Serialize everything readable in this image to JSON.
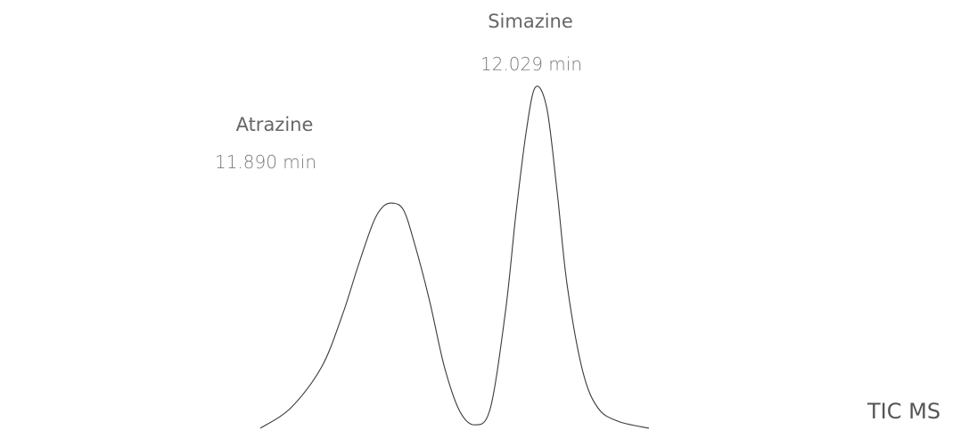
{
  "chart_data": {
    "type": "line",
    "trace_label": "TIC MS",
    "peaks": [
      {
        "name": "Atrazine",
        "retention_time_label": "11.890 min",
        "retention_time": 11.89,
        "relative_height": 0.66
      },
      {
        "name": "Simazine",
        "retention_time_label": "12.029 min",
        "retention_time": 12.029,
        "relative_height": 1.0
      }
    ],
    "x": [
      11.76,
      11.79,
      11.82,
      11.84,
      11.855,
      11.87,
      11.88,
      11.89,
      11.9,
      11.91,
      11.925,
      11.94,
      11.955,
      11.97,
      11.985,
      12.0,
      12.01,
      12.02,
      12.029,
      12.04,
      12.05,
      12.06,
      12.075,
      12.09,
      12.11,
      12.14
    ],
    "y": [
      0.0,
      0.06,
      0.18,
      0.33,
      0.47,
      0.6,
      0.65,
      0.66,
      0.64,
      0.55,
      0.38,
      0.18,
      0.05,
      0.01,
      0.06,
      0.35,
      0.63,
      0.87,
      1.0,
      0.94,
      0.7,
      0.42,
      0.17,
      0.06,
      0.02,
      0.0
    ],
    "xlim": [
      11.76,
      12.14
    ],
    "ylim": [
      0,
      1
    ],
    "xlabel": "",
    "ylabel": "",
    "grid": false,
    "axes_visible": false
  }
}
